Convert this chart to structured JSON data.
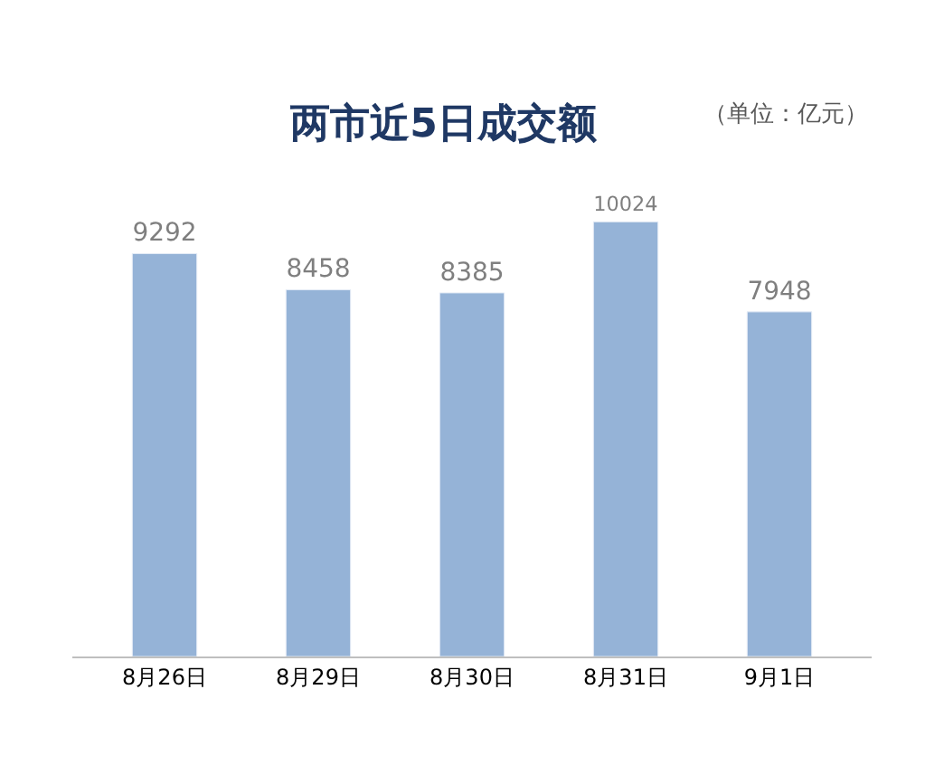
{
  "chart_data": {
    "type": "bar",
    "title": "两市近5日成交额",
    "subtitle": "（单位：亿元）",
    "categories": [
      "8月26日",
      "8月29日",
      "8月30日",
      "8月31日",
      "9月1日"
    ],
    "values": [
      9292,
      8458,
      8385,
      10024,
      7948
    ],
    "color": "#95b3d7",
    "data_labels": true
  }
}
